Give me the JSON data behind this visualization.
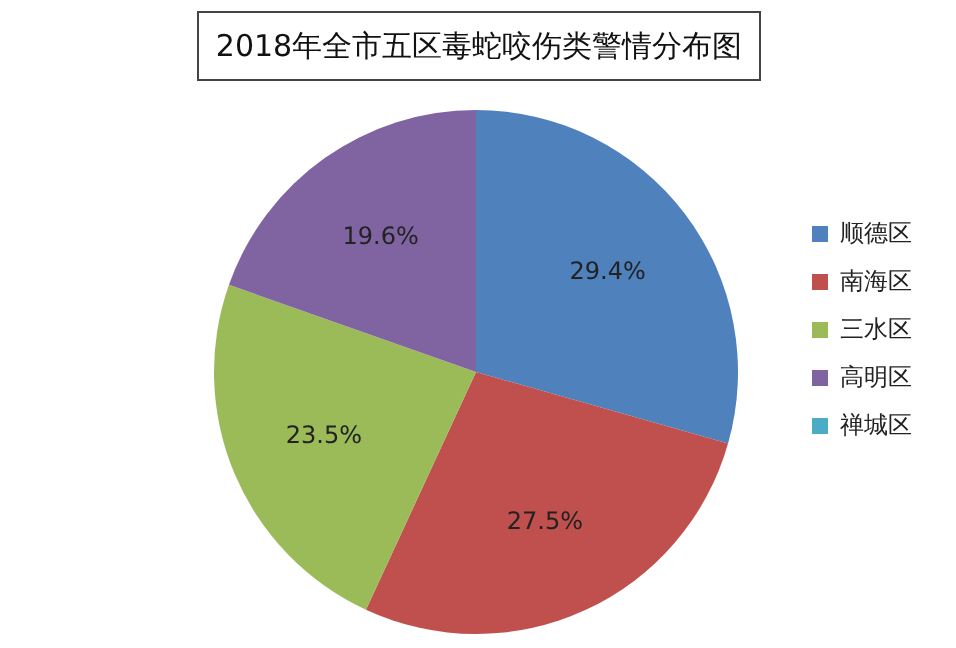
{
  "chart_data": {
    "type": "pie",
    "title": "2018年全市五区毒蛇咬伤类警情分布图",
    "categories": [
      "顺德区",
      "南海区",
      "三水区",
      "高明区",
      "禅城区"
    ],
    "values": [
      29.4,
      27.5,
      23.5,
      19.6,
      0
    ],
    "colors": [
      "#4f81bd",
      "#c0504d",
      "#9bbb59",
      "#8064a2",
      "#4bacc6"
    ],
    "value_labels": [
      "29.4%",
      "27.5%",
      "23.5%",
      "19.6%",
      null
    ],
    "legend": "right"
  }
}
